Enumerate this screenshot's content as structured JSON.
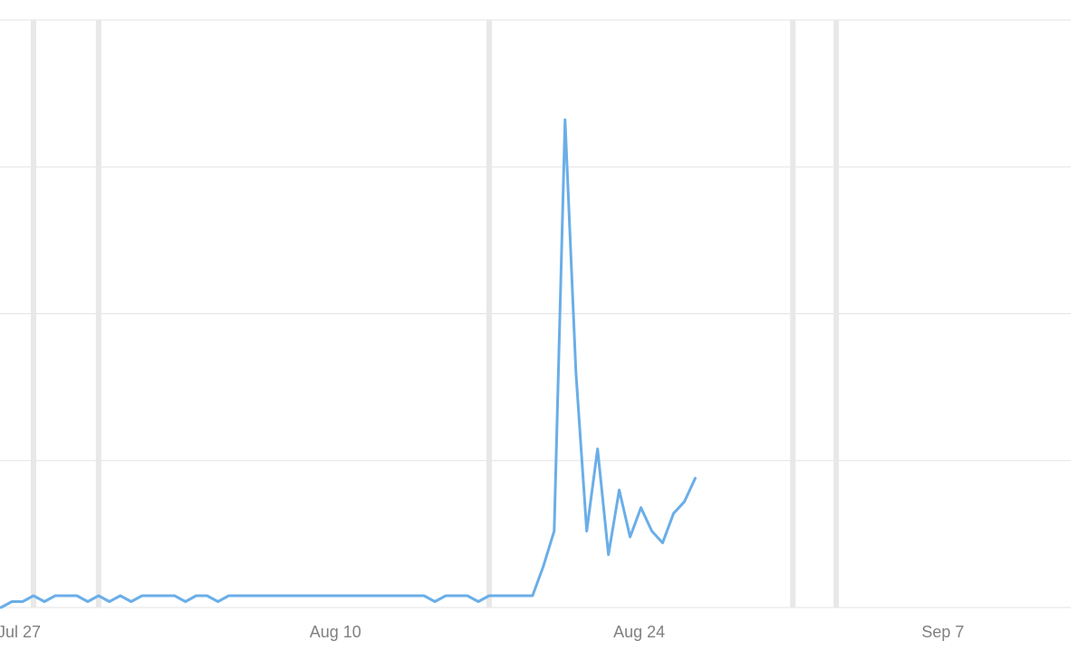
{
  "chart_data": {
    "type": "line",
    "title": "",
    "xlabel": "",
    "ylabel": "",
    "x_ticks": [
      {
        "label": "Jul 27",
        "day": 0
      },
      {
        "label": "Aug 10",
        "day": 14
      },
      {
        "label": "Aug 24",
        "day": 28
      },
      {
        "label": "Sep 7",
        "day": 42
      }
    ],
    "ylim": [
      0,
      100
    ],
    "grid": true,
    "legend": "none",
    "line_color": "#6aaee8",
    "event_markers_days": [
      0,
      3,
      21,
      35,
      37
    ],
    "series": [
      {
        "values": [
          0,
          1,
          1,
          2,
          1,
          2,
          2,
          2,
          1,
          2,
          1,
          2,
          1,
          2,
          2,
          2,
          2,
          1,
          2,
          2,
          1,
          2,
          2,
          2,
          2,
          2,
          2,
          2,
          2,
          2,
          2,
          2,
          2,
          2,
          2,
          2,
          2,
          2,
          2,
          2,
          1,
          2,
          2,
          2,
          1,
          2,
          2,
          2,
          2,
          2,
          7,
          13,
          83,
          40,
          13,
          27,
          9,
          20,
          12,
          17,
          13,
          11,
          16,
          18,
          22
        ]
      }
    ]
  }
}
